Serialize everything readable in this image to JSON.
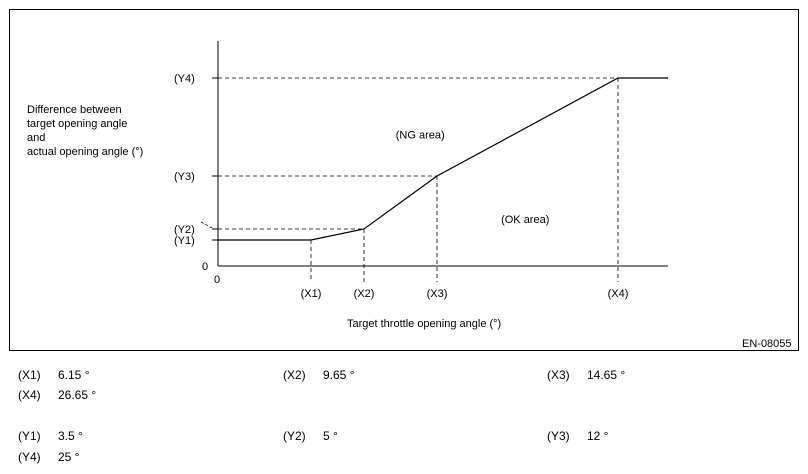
{
  "chart_data": {
    "type": "line",
    "title": "",
    "ylabel_lines": [
      "Difference between",
      "target opening  angle",
      "and",
      "actual opening angle (°)"
    ],
    "xlabel": "Target throttle opening angle (°)",
    "origin_label": "0",
    "y_zero_label": "0",
    "x_ticks": [
      {
        "label": "(X1)",
        "value": 6.15
      },
      {
        "label": "(X2)",
        "value": 9.65
      },
      {
        "label": "(X3)",
        "value": 14.65
      },
      {
        "label": "(X4)",
        "value": 26.65
      }
    ],
    "y_ticks": [
      {
        "label": "(Y1)",
        "value": 3.5
      },
      {
        "label": "(Y2)",
        "value": 5
      },
      {
        "label": "(Y3)",
        "value": 12
      },
      {
        "label": "(Y4)",
        "value": 25
      }
    ],
    "series": [
      {
        "x": [
          0,
          6.15,
          9.65,
          14.65,
          26.65,
          30
        ],
        "y": [
          3.5,
          3.5,
          5,
          12,
          25,
          25
        ]
      }
    ],
    "regions": [
      {
        "label": "(NG area)",
        "x": 13.5,
        "y": 17
      },
      {
        "label": "(OK area)",
        "x": 20.5,
        "y": 5.8
      }
    ],
    "xlim": [
      0,
      30
    ],
    "ylim": [
      0,
      28.5
    ],
    "grid": false
  },
  "figure_code": "EN-08055",
  "legend": [
    {
      "key": "(X1)",
      "value": "6.15 °"
    },
    {
      "key": "(X2)",
      "value": "9.65 °"
    },
    {
      "key": "(X3)",
      "value": "14.65 °"
    },
    {
      "key": "(X4)",
      "value": "26.65 °"
    },
    {
      "key": "(Y1)",
      "value": "3.5 °"
    },
    {
      "key": "(Y2)",
      "value": "5 °"
    },
    {
      "key": "(Y3)",
      "value": "12 °"
    },
    {
      "key": "(Y4)",
      "value": "25 °"
    }
  ]
}
